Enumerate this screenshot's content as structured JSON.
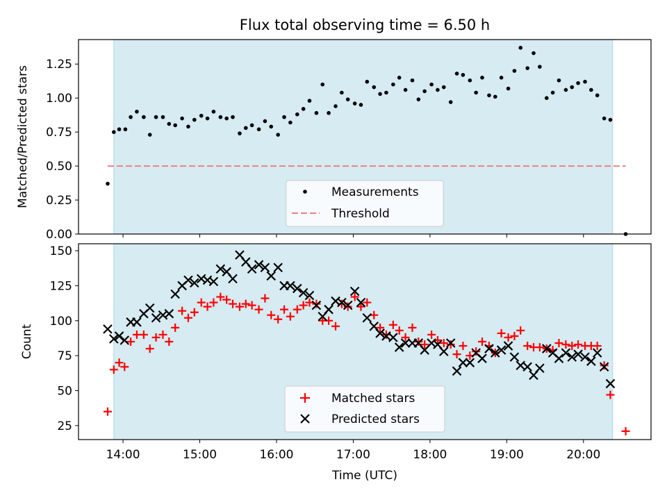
{
  "chart_data": [
    {
      "type": "scatter",
      "title": "Flux total observing time = 6.50 h",
      "xlabel": "",
      "ylabel": "Matched/Predicted stars",
      "xlim": [
        13.42,
        20.88
      ],
      "ylim": [
        0,
        1.43
      ],
      "yticks": [
        0,
        0.25,
        0.5,
        0.75,
        1.0,
        1.25
      ],
      "ytick_labels": [
        "0.00",
        "0.25",
        "0.50",
        "0.75",
        "1.00",
        "1.25"
      ],
      "shaded_span": [
        13.88,
        20.38
      ],
      "legend_position": "lower-center",
      "threshold": {
        "name": "Threshold",
        "y": 0.5,
        "x_range": [
          13.8,
          20.55
        ],
        "color": "#f08080"
      },
      "series": [
        {
          "name": "Measurements",
          "marker": "dot",
          "color": "#000000",
          "x": [
            13.8,
            13.88,
            13.95,
            14.03,
            14.1,
            14.18,
            14.27,
            14.35,
            14.43,
            14.52,
            14.6,
            14.68,
            14.77,
            14.85,
            14.93,
            15.02,
            15.1,
            15.18,
            15.27,
            15.35,
            15.43,
            15.52,
            15.6,
            15.68,
            15.77,
            15.85,
            15.93,
            16.02,
            16.1,
            16.18,
            16.27,
            16.35,
            16.43,
            16.52,
            16.6,
            16.68,
            16.77,
            16.85,
            16.93,
            17.02,
            17.1,
            17.18,
            17.27,
            17.35,
            17.43,
            17.52,
            17.6,
            17.68,
            17.77,
            17.85,
            17.93,
            18.02,
            18.1,
            18.18,
            18.27,
            18.35,
            18.43,
            18.52,
            18.6,
            18.68,
            18.77,
            18.85,
            18.93,
            19.02,
            19.1,
            19.18,
            19.27,
            19.35,
            19.43,
            19.52,
            19.6,
            19.68,
            19.77,
            19.85,
            19.93,
            20.02,
            20.1,
            20.18,
            20.27,
            20.35,
            20.55
          ],
          "y": [
            0.37,
            0.75,
            0.77,
            0.77,
            0.86,
            0.9,
            0.86,
            0.73,
            0.86,
            0.86,
            0.81,
            0.8,
            0.85,
            0.79,
            0.84,
            0.87,
            0.85,
            0.9,
            0.86,
            0.85,
            0.86,
            0.74,
            0.78,
            0.8,
            0.77,
            0.83,
            0.79,
            0.73,
            0.86,
            0.82,
            0.88,
            0.92,
            0.98,
            0.89,
            1.1,
            0.89,
            0.94,
            1.04,
            0.99,
            0.96,
            0.95,
            1.12,
            1.08,
            1.03,
            1.04,
            1.1,
            1.15,
            1.06,
            1.13,
            0.99,
            1.05,
            1.1,
            1.06,
            1.08,
            0.97,
            1.18,
            1.17,
            1.13,
            1.04,
            1.15,
            1.02,
            1.01,
            1.15,
            1.07,
            1.2,
            1.37,
            1.22,
            1.33,
            1.23,
            1.0,
            1.04,
            1.13,
            1.06,
            1.08,
            1.11,
            1.12,
            1.06,
            1.02,
            0.85,
            0.84,
            0.0
          ]
        }
      ]
    },
    {
      "type": "scatter",
      "title": "",
      "xlabel": "Time (UTC)",
      "ylabel": "Count",
      "xlim": [
        13.42,
        20.88
      ],
      "ylim": [
        15,
        155
      ],
      "xticks": [
        14,
        15,
        16,
        17,
        18,
        19,
        20
      ],
      "xtick_labels": [
        "14:00",
        "15:00",
        "16:00",
        "17:00",
        "18:00",
        "19:00",
        "20:00"
      ],
      "yticks": [
        25,
        50,
        75,
        100,
        125,
        150
      ],
      "ytick_labels": [
        "25",
        "50",
        "75",
        "100",
        "125",
        "150"
      ],
      "shaded_span": [
        13.88,
        20.38
      ],
      "legend_position": "lower-center",
      "series": [
        {
          "name": "Matched stars",
          "marker": "plus",
          "color": "#ff0000",
          "x": [
            13.8,
            13.88,
            13.95,
            14.02,
            14.1,
            14.18,
            14.27,
            14.35,
            14.43,
            14.52,
            14.6,
            14.68,
            14.77,
            14.85,
            14.93,
            15.02,
            15.1,
            15.18,
            15.27,
            15.35,
            15.43,
            15.52,
            15.6,
            15.68,
            15.77,
            15.85,
            15.93,
            16.02,
            16.1,
            16.18,
            16.27,
            16.35,
            16.43,
            16.52,
            16.6,
            16.68,
            16.77,
            16.85,
            16.93,
            17.02,
            17.1,
            17.18,
            17.27,
            17.35,
            17.43,
            17.52,
            17.6,
            17.68,
            17.77,
            17.85,
            17.93,
            18.02,
            18.1,
            18.18,
            18.27,
            18.35,
            18.43,
            18.52,
            18.6,
            18.68,
            18.77,
            18.85,
            18.93,
            19.02,
            19.1,
            19.18,
            19.27,
            19.35,
            19.43,
            19.52,
            19.6,
            19.68,
            19.77,
            19.85,
            19.93,
            20.02,
            20.1,
            20.18,
            20.27,
            20.35,
            20.55
          ],
          "y": [
            35,
            65,
            70,
            67,
            85,
            90,
            90,
            80,
            88,
            90,
            85,
            95,
            107,
            102,
            106,
            113,
            110,
            113,
            117,
            115,
            112,
            110,
            112,
            111,
            108,
            116,
            104,
            101,
            108,
            103,
            108,
            111,
            113,
            112,
            100,
            100,
            96,
            112,
            110,
            117,
            110,
            113,
            104,
            95,
            90,
            97,
            93,
            88,
            95,
            85,
            83,
            90,
            86,
            84,
            83,
            76,
            82,
            75,
            78,
            85,
            82,
            77,
            91,
            88,
            89,
            93,
            82,
            81,
            81,
            80,
            79,
            84,
            83,
            82,
            83,
            82,
            82,
            82,
            68,
            47,
            21
          ]
        },
        {
          "name": "Predicted stars",
          "marker": "x",
          "color": "#000000",
          "x": [
            13.8,
            13.88,
            13.95,
            14.02,
            14.1,
            14.18,
            14.27,
            14.35,
            14.43,
            14.52,
            14.6,
            14.68,
            14.77,
            14.85,
            14.93,
            15.02,
            15.1,
            15.18,
            15.27,
            15.35,
            15.43,
            15.52,
            15.6,
            15.68,
            15.77,
            15.85,
            15.93,
            16.02,
            16.1,
            16.18,
            16.27,
            16.35,
            16.43,
            16.52,
            16.6,
            16.68,
            16.77,
            16.85,
            16.93,
            17.02,
            17.1,
            17.18,
            17.27,
            17.35,
            17.43,
            17.52,
            17.6,
            17.68,
            17.77,
            17.85,
            17.93,
            18.02,
            18.1,
            18.18,
            18.27,
            18.35,
            18.43,
            18.52,
            18.6,
            18.68,
            18.77,
            18.85,
            18.93,
            19.02,
            19.1,
            19.18,
            19.27,
            19.35,
            19.43,
            19.52,
            19.6,
            19.68,
            19.77,
            19.85,
            19.93,
            20.02,
            20.1,
            20.18,
            20.27,
            20.35
          ],
          "y": [
            94,
            87,
            89,
            86,
            99,
            99,
            105,
            109,
            102,
            104,
            105,
            119,
            125,
            129,
            127,
            130,
            129,
            128,
            137,
            135,
            130,
            147,
            142,
            137,
            140,
            138,
            132,
            138,
            125,
            125,
            123,
            120,
            118,
            111,
            103,
            108,
            114,
            113,
            111,
            121,
            113,
            102,
            96,
            91,
            89,
            88,
            81,
            84,
            84,
            84,
            79,
            84,
            83,
            78,
            84,
            64,
            70,
            70,
            77,
            73,
            80,
            77,
            79,
            82,
            74,
            68,
            67,
            61,
            66,
            80,
            77,
            73,
            77,
            74,
            76,
            74,
            71,
            77,
            67,
            55
          ]
        }
      ]
    }
  ]
}
